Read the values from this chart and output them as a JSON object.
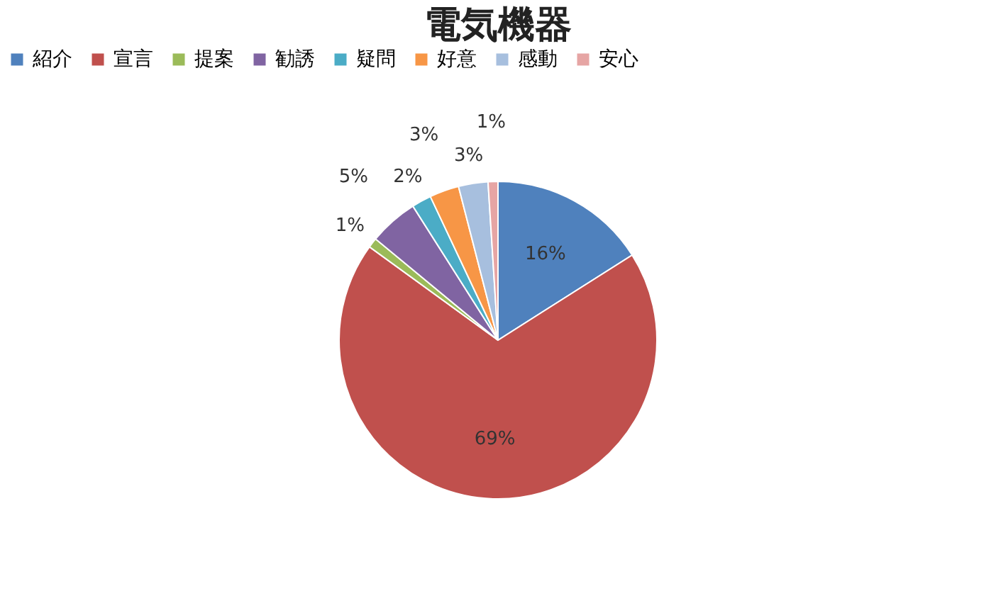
{
  "chart_data": {
    "type": "pie",
    "title": "電気機器",
    "categories": [
      "紹介",
      "宣言",
      "提案",
      "勧誘",
      "疑問",
      "好意",
      "感動",
      "安心"
    ],
    "values": [
      16,
      69,
      1,
      5,
      2,
      3,
      3,
      1
    ],
    "value_labels": [
      "16%",
      "69%",
      "1%",
      "5%",
      "2%",
      "3%",
      "3%",
      "1%"
    ],
    "colors": [
      "#4f81bd",
      "#c0504d",
      "#9bbb59",
      "#8064a2",
      "#4bacc6",
      "#f79646",
      "#a7bfde",
      "#e6a5a4"
    ],
    "legend": "top"
  }
}
